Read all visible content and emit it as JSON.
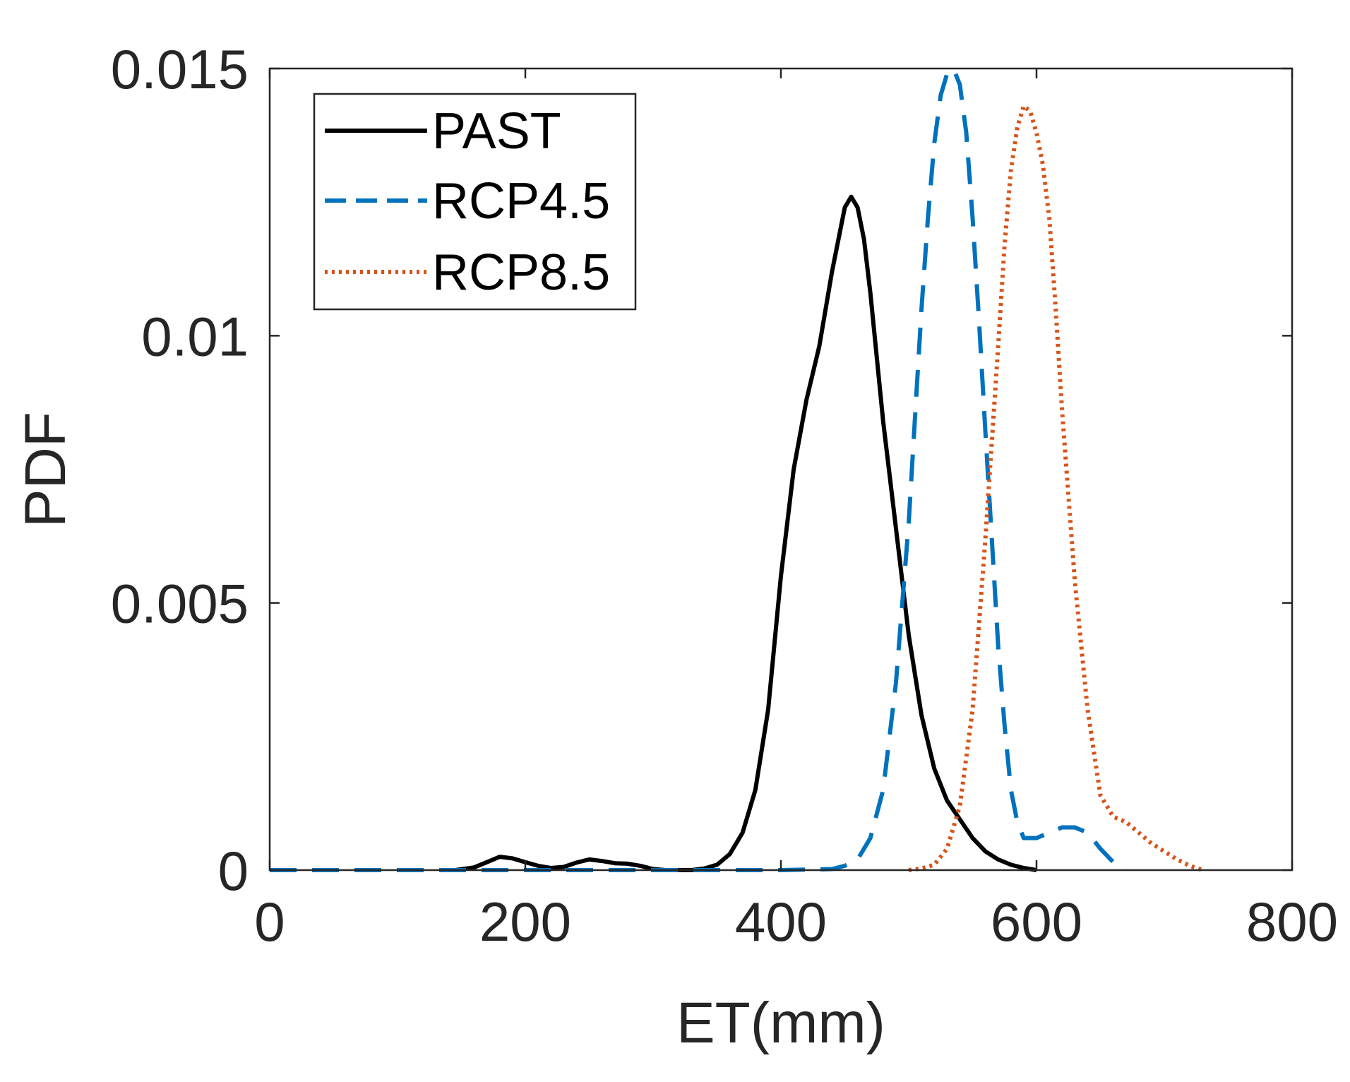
{
  "chart_data": {
    "type": "line",
    "title": "",
    "xlabel": "ET(mm)",
    "ylabel": "PDF",
    "xlim": [
      0,
      800
    ],
    "ylim": [
      0,
      0.015
    ],
    "xticks": [
      0,
      200,
      400,
      600,
      800
    ],
    "xtick_labels": [
      "0",
      "200",
      "400",
      "600",
      "800"
    ],
    "yticks": [
      0,
      0.005,
      0.01,
      0.015
    ],
    "ytick_labels": [
      "0",
      "0.005",
      "0.01",
      "0.015"
    ],
    "grid": false,
    "legend_position": "top-left",
    "series": [
      {
        "name": "PAST",
        "color": "#000000",
        "style": "solid",
        "x": [
          145,
          160,
          170,
          180,
          190,
          200,
          210,
          220,
          230,
          240,
          250,
          260,
          270,
          280,
          290,
          300,
          310,
          320,
          330,
          340,
          350,
          360,
          370,
          380,
          390,
          400,
          410,
          420,
          430,
          440,
          450,
          455,
          460,
          465,
          470,
          480,
          490,
          500,
          510,
          520,
          530,
          540,
          550,
          560,
          570,
          580,
          590,
          600
        ],
        "y": [
          0,
          5e-05,
          0.00015,
          0.00025,
          0.00022,
          0.00015,
          8e-05,
          4e-05,
          6e-05,
          0.00014,
          0.0002,
          0.00017,
          0.00013,
          0.00012,
          8e-05,
          2e-05,
          0.0,
          0.0,
          0.0,
          3e-05,
          0.0001,
          0.0003,
          0.0007,
          0.0015,
          0.003,
          0.0055,
          0.0075,
          0.0088,
          0.0098,
          0.0112,
          0.0124,
          0.0126,
          0.0124,
          0.0118,
          0.0108,
          0.0084,
          0.0064,
          0.0044,
          0.0029,
          0.0019,
          0.0013,
          0.00095,
          0.0006,
          0.00035,
          0.0002,
          0.0001,
          4e-05,
          0.0
        ]
      },
      {
        "name": "RCP4.5",
        "color": "#0072BD",
        "style": "dashed",
        "x": [
          0,
          100,
          200,
          300,
          400,
          440,
          450,
          460,
          470,
          480,
          490,
          500,
          510,
          515,
          520,
          525,
          530,
          535,
          540,
          545,
          550,
          555,
          560,
          565,
          570,
          575,
          580,
          585,
          590,
          600,
          610,
          620,
          630,
          640,
          650,
          660,
          670
        ],
        "y": [
          0,
          0,
          0,
          0,
          0,
          2e-05,
          8e-05,
          0.0002,
          0.0006,
          0.0015,
          0.0035,
          0.0065,
          0.0105,
          0.0122,
          0.0136,
          0.0145,
          0.0149,
          0.015,
          0.0147,
          0.0138,
          0.0122,
          0.0103,
          0.0082,
          0.0062,
          0.0042,
          0.0027,
          0.0015,
          0.0009,
          0.0006,
          0.0006,
          0.0007,
          0.0008,
          0.0008,
          0.0007,
          0.0004,
          0.00015,
          0.0
        ]
      },
      {
        "name": "RCP8.5",
        "color": "#D95319",
        "style": "dotted",
        "x": [
          500,
          510,
          520,
          530,
          540,
          550,
          560,
          570,
          575,
          580,
          585,
          590,
          595,
          600,
          605,
          610,
          615,
          620,
          630,
          640,
          650,
          660,
          670,
          680,
          690,
          700,
          710,
          720,
          730
        ],
        "y": [
          0,
          3e-05,
          0.0001,
          0.0004,
          0.0012,
          0.003,
          0.0062,
          0.0098,
          0.0117,
          0.0131,
          0.0139,
          0.0143,
          0.0142,
          0.0138,
          0.0132,
          0.0122,
          0.0105,
          0.0086,
          0.0054,
          0.003,
          0.0014,
          0.001,
          0.0009,
          0.0007,
          0.0005,
          0.00035,
          0.0002,
          8e-05,
          0.0
        ]
      }
    ]
  }
}
